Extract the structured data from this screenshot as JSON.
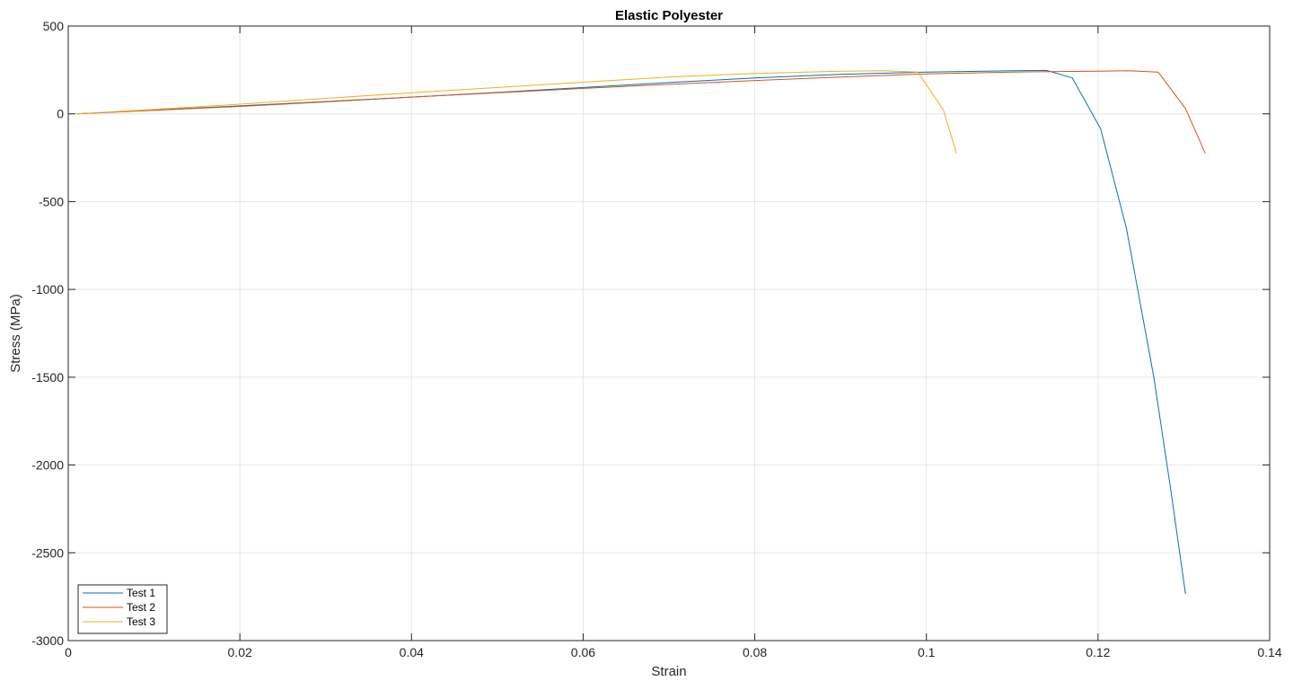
{
  "chart_data": {
    "type": "line",
    "title": "Elastic Polyester",
    "xlabel": "Strain",
    "ylabel": "Stress (MPa)",
    "xlim": [
      0,
      0.14
    ],
    "ylim": [
      -3000,
      500
    ],
    "xticks": [
      0,
      0.02,
      0.04,
      0.06,
      0.08,
      0.1,
      0.12,
      0.14
    ],
    "xtick_labels": [
      "0",
      "0.02",
      "0.04",
      "0.06",
      "0.08",
      "0.1",
      "0.12",
      "0.14"
    ],
    "yticks": [
      500,
      0,
      -500,
      -1000,
      -1500,
      -2000,
      -2500,
      -3000
    ],
    "ytick_labels": [
      "500",
      "0",
      "-500",
      "-1000",
      "-1500",
      "-2000",
      "-2500",
      "-3000"
    ],
    "grid": true,
    "legend_position": "bottom-left",
    "series": [
      {
        "name": "Test 1",
        "color": "#0072BD",
        "x": [
          0.001,
          0.01,
          0.02,
          0.03,
          0.04,
          0.05,
          0.06,
          0.07,
          0.08,
          0.09,
          0.1,
          0.11,
          0.114,
          0.117,
          0.1203,
          0.1233,
          0.1265,
          0.1285,
          0.1302
        ],
        "y": [
          0,
          22,
          45,
          70,
          95,
          122,
          150,
          178,
          205,
          225,
          238,
          245,
          247,
          205,
          -85,
          -650,
          -1500,
          -2150,
          -2735
        ]
      },
      {
        "name": "Test 2",
        "color": "#D95319",
        "x": [
          0.001,
          0.01,
          0.02,
          0.03,
          0.04,
          0.05,
          0.06,
          0.07,
          0.08,
          0.09,
          0.1,
          0.11,
          0.12,
          0.1235,
          0.127,
          0.1302,
          0.1325
        ],
        "y": [
          0,
          20,
          42,
          68,
          95,
          120,
          145,
          168,
          190,
          210,
          228,
          238,
          243,
          245,
          238,
          30,
          -225
        ]
      },
      {
        "name": "Test 3",
        "color": "#EDB120",
        "x": [
          0.001,
          0.01,
          0.02,
          0.03,
          0.04,
          0.05,
          0.06,
          0.07,
          0.08,
          0.09,
          0.095,
          0.099,
          0.102,
          0.1035
        ],
        "y": [
          0,
          25,
          55,
          88,
          120,
          150,
          180,
          210,
          230,
          243,
          245,
          238,
          20,
          -225
        ]
      }
    ]
  }
}
